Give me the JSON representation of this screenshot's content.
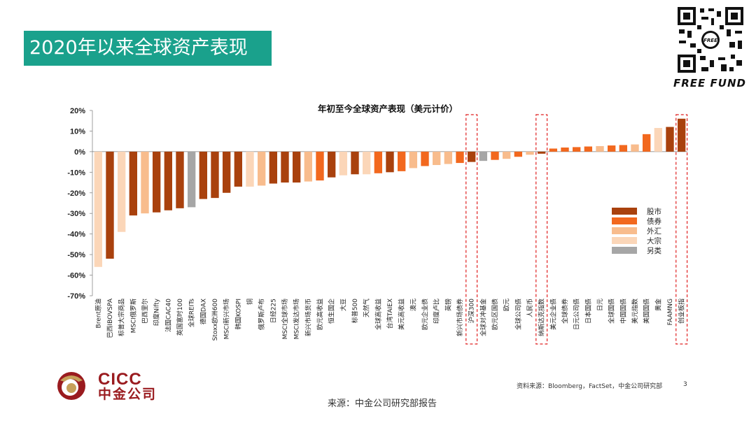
{
  "header": {
    "title": "2020年以来全球资产表现"
  },
  "brand": {
    "name": "FREE FUND"
  },
  "colors": {
    "accent": "#1aa18c",
    "stock": "#a9410d",
    "bond": "#f2681e",
    "fx": "#f8bc8d",
    "commodity": "#fbd6b8",
    "other": "#a6a6a6",
    "highlight": "#e02020"
  },
  "chart_data": {
    "type": "bar",
    "title": "年初至今全球资产表现（美元计价）",
    "ylim": [
      -70,
      20
    ],
    "ticks": [
      20,
      10,
      0,
      -10,
      -20,
      -30,
      -40,
      -50,
      -60,
      -70
    ],
    "tick_labels": [
      "20%",
      "10%",
      "0%",
      "-10%",
      "-20%",
      "-30%",
      "-40%",
      "-50%",
      "-60%",
      "-70%"
    ],
    "legend": [
      "股市",
      "债券",
      "外汇",
      "大宗",
      "另类"
    ],
    "legend_placement": "right",
    "categories": [
      "Brent原油",
      "巴西IBOVSPA",
      "标普大宗商品",
      "MSCI俄罗斯",
      "巴西里尔",
      "印度Nifty",
      "法国CAC40",
      "英国富时100",
      "全球REITs",
      "德国DAX",
      "Stoxx欧洲600",
      "MSCI新兴市场",
      "韩国KOSPI",
      "铜",
      "俄罗斯卢布",
      "日经225",
      "MSCI全球市场",
      "MSCI发达市场",
      "新兴市场货币",
      "欧元高收益",
      "恒生国企",
      "大豆",
      "标普500",
      "天然气",
      "全球高收益",
      "台湾TAIEX",
      "美元高收益",
      "澳元",
      "欧元企业债",
      "印度卢比",
      "英镑",
      "新兴市场债券",
      "沪深300",
      "全球对冲基金",
      "欧元区国债",
      "欧元",
      "全球公司债",
      "人民币",
      "纳斯达克指数",
      "美元企业债",
      "全球债券",
      "日元公司债",
      "日本国债",
      "日元",
      "全球国债",
      "中国国债",
      "美元指数",
      "美国国债",
      "黄金",
      "FAAMNG",
      "创业板指"
    ],
    "values": [
      -56,
      -52,
      -39,
      -31,
      -30,
      -29.5,
      -28.5,
      -27.5,
      -27,
      -23,
      -22.5,
      -20,
      -17,
      -17,
      -16.5,
      -15.5,
      -15,
      -15,
      -14.5,
      -14,
      -12.5,
      -11.5,
      -11,
      -11,
      -10.5,
      -10,
      -9.5,
      -8,
      -7,
      -6.5,
      -6,
      -5.5,
      -5,
      -4.5,
      -4,
      -3.5,
      -2.5,
      -1.5,
      -1,
      1.5,
      2,
      2.2,
      2.5,
      2.7,
      3,
      3.2,
      3.5,
      8.5,
      11.5,
      12,
      16
    ],
    "groups": [
      "大宗",
      "股市",
      "大宗",
      "股市",
      "外汇",
      "股市",
      "股市",
      "股市",
      "另类",
      "股市",
      "股市",
      "股市",
      "股市",
      "大宗",
      "外汇",
      "股市",
      "股市",
      "股市",
      "外汇",
      "债券",
      "股市",
      "大宗",
      "股市",
      "大宗",
      "债券",
      "股市",
      "债券",
      "外汇",
      "债券",
      "外汇",
      "外汇",
      "债券",
      "股市",
      "另类",
      "债券",
      "外汇",
      "债券",
      "外汇",
      "股市",
      "债券",
      "债券",
      "债券",
      "债券",
      "外汇",
      "债券",
      "债券",
      "外汇",
      "债券",
      "大宗",
      "股市",
      "股市"
    ],
    "highlighted": [
      "沪深300",
      "纳斯达克指数",
      "创业板指"
    ]
  },
  "footer": {
    "source_note": "资料来源：Bloomberg，FactSet，中金公司研究部",
    "page_number": "3",
    "source": "来源：中金公司研究部报告"
  },
  "logo": {
    "en": "CICC",
    "cn": "中金公司"
  }
}
